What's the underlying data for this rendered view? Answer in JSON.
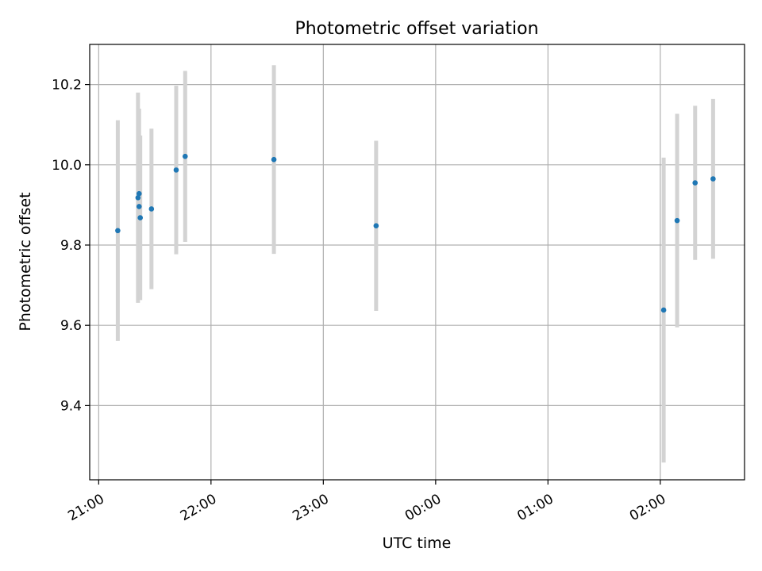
{
  "chart_data": {
    "type": "scatter",
    "title": "Photometric offset variation",
    "xlabel": "UTC time",
    "ylabel": "Photometric offset",
    "x_unit": "UTC time (hours, values after midnight continue past 24)",
    "xlim": [
      20.92,
      26.75
    ],
    "ylim": [
      9.215,
      10.3
    ],
    "x_ticks": [
      {
        "value": 21,
        "label": "21:00"
      },
      {
        "value": 22,
        "label": "22:00"
      },
      {
        "value": 23,
        "label": "23:00"
      },
      {
        "value": 24,
        "label": "00:00"
      },
      {
        "value": 25,
        "label": "01:00"
      },
      {
        "value": 26,
        "label": "02:00"
      }
    ],
    "y_ticks": [
      {
        "value": 9.4,
        "label": "9.4"
      },
      {
        "value": 9.6,
        "label": "9.6"
      },
      {
        "value": 9.8,
        "label": "9.8"
      },
      {
        "value": 10.0,
        "label": "10.0"
      },
      {
        "value": 10.2,
        "label": "10.2"
      }
    ],
    "grid": true,
    "series": [
      {
        "marker_color": "#1f77b4",
        "errorbar_color": "#d3d3d3",
        "points": [
          {
            "x": 21.17,
            "y": 9.836,
            "err": 0.275
          },
          {
            "x": 21.35,
            "y": 9.918,
            "err": 0.262
          },
          {
            "x": 21.36,
            "y": 9.928,
            "err": 0.212
          },
          {
            "x": 21.36,
            "y": 9.896,
            "err": 0.178
          },
          {
            "x": 21.37,
            "y": 9.868,
            "err": 0.205
          },
          {
            "x": 21.47,
            "y": 9.89,
            "err": 0.2
          },
          {
            "x": 21.69,
            "y": 9.987,
            "err": 0.21
          },
          {
            "x": 21.77,
            "y": 10.021,
            "err": 0.213
          },
          {
            "x": 22.56,
            "y": 10.013,
            "err": 0.235
          },
          {
            "x": 23.47,
            "y": 9.848,
            "err": 0.212
          },
          {
            "x": 26.03,
            "y": 9.638,
            "err": 0.38
          },
          {
            "x": 26.15,
            "y": 9.861,
            "err": 0.266
          },
          {
            "x": 26.31,
            "y": 9.955,
            "err": 0.192
          },
          {
            "x": 26.47,
            "y": 9.965,
            "err": 0.199
          }
        ]
      }
    ]
  }
}
